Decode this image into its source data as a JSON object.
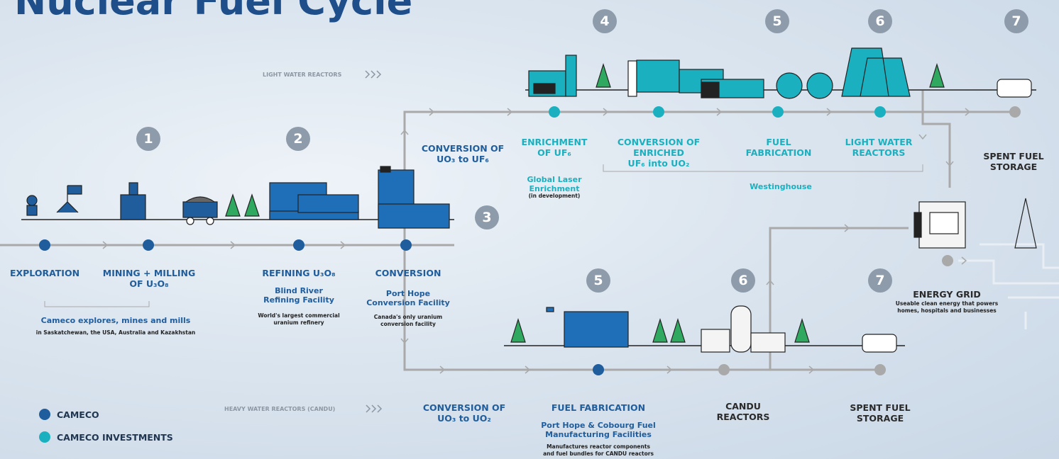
{
  "title": "Nuclear Fuel Cycle",
  "routes": {
    "light_water": "LIGHT WATER REACTORS",
    "heavy_water": "HEAVY WATER REACTORS (CANDU)"
  },
  "steps": [
    "1",
    "2",
    "3",
    "4",
    "5",
    "6",
    "7",
    "5",
    "6",
    "7"
  ],
  "stages": [
    {
      "label": [
        "EXPLORATION"
      ]
    },
    {
      "label": [
        "MINING + MILLING",
        "OF U₃O₈"
      ]
    },
    {
      "label": [
        "REFINING U₃O₈"
      ],
      "facility": [
        "Blind River",
        "Refining Facility"
      ],
      "note": [
        "World's largest commercial",
        "uranium refinery"
      ]
    },
    {
      "label": [
        "CONVERSION"
      ],
      "facility": [
        "Port Hope",
        "Conversion Facility"
      ],
      "note": [
        "Canada's only uranium",
        "conversion facility"
      ]
    },
    {
      "label": [
        "CONVERSION OF",
        "UO₃ to UF₆"
      ]
    },
    {
      "label": [
        "ENRICHMENT",
        "OF UF₆"
      ],
      "facility": [
        "Global Laser",
        "Enrichment"
      ],
      "note": [
        "(in development)"
      ]
    },
    {
      "label": [
        "CONVERSION OF",
        "ENRICHED",
        "UF₆ into UO₂"
      ]
    },
    {
      "label": [
        "FUEL",
        "FABRICATION"
      ]
    },
    {
      "label": [
        "LIGHT WATER",
        "REACTORS"
      ]
    },
    {
      "label": [
        "SPENT FUEL",
        "STORAGE"
      ]
    },
    {
      "label": [
        "CONVERSION OF",
        "UO₃ to UO₂"
      ]
    },
    {
      "label": [
        "FUEL FABRICATION"
      ],
      "facility": [
        "Port Hope & Cobourg Fuel",
        "Manufacturing Facilities"
      ],
      "note": [
        "Manufactures reactor components",
        "and fuel bundles for CANDU reactors"
      ]
    },
    {
      "label": [
        "CANDU",
        "REACTORS"
      ]
    },
    {
      "label": [
        "SPENT FUEL",
        "STORAGE"
      ]
    },
    {
      "label": [
        "ENERGY GRID"
      ],
      "note": [
        "Useable clean energy that powers",
        "homes, hospitals and businesses"
      ]
    }
  ],
  "groups": {
    "cameco_mining": [
      "Cameco explores, mines and mills",
      "in Saskatchewan, the USA, Australia and Kazakhstan"
    ],
    "westinghouse": "Westinghouse"
  },
  "legend": [
    "CAMECO",
    "CAMECO INVESTMENTS"
  ]
}
